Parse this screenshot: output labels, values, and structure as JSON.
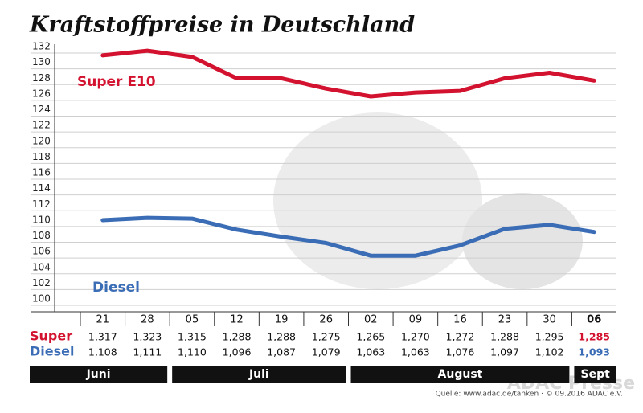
{
  "chart_data": {
    "type": "line",
    "title": "Kraftstoffpreise in Deutschland",
    "groups": [
      {
        "label": "Juni",
        "categories": [
          "21",
          "28"
        ]
      },
      {
        "label": "Juli",
        "categories": [
          "05",
          "12",
          "19",
          "26"
        ]
      },
      {
        "label": "August",
        "categories": [
          "02",
          "09",
          "16",
          "23",
          "30"
        ]
      },
      {
        "label": "Sept",
        "categories": [
          "06"
        ]
      }
    ],
    "series": [
      {
        "name": "Super E10",
        "table_label": "Super",
        "color": "#d3122f",
        "values": [
          131.7,
          132.3,
          131.5,
          128.8,
          128.8,
          127.5,
          126.5,
          127.0,
          127.2,
          128.8,
          129.5,
          128.5
        ],
        "value_labels": [
          "1,317",
          "1,323",
          "1,315",
          "1,288",
          "1,288",
          "1,275",
          "1,265",
          "1,270",
          "1,272",
          "1,288",
          "1,295",
          "1,285"
        ]
      },
      {
        "name": "Diesel",
        "table_label": "Diesel",
        "color": "#3a6db5",
        "values": [
          110.8,
          111.1,
          111.0,
          109.6,
          108.7,
          107.9,
          106.3,
          106.3,
          107.6,
          109.7,
          110.2,
          109.3
        ],
        "value_labels": [
          "1,108",
          "1,111",
          "1,110",
          "1,096",
          "1,087",
          "1,079",
          "1,063",
          "1,063",
          "1,076",
          "1,097",
          "1,102",
          "1,093"
        ]
      }
    ],
    "ylim": [
      100,
      132
    ],
    "yticks": [
      100,
      102,
      104,
      106,
      108,
      110,
      112,
      114,
      116,
      118,
      120,
      122,
      124,
      126,
      128,
      130,
      132
    ],
    "grid": true,
    "source": "Quelle: www.adac.de/tanken · © 09.2016 ADAC e.V.",
    "watermark": "ADAC Presse"
  }
}
